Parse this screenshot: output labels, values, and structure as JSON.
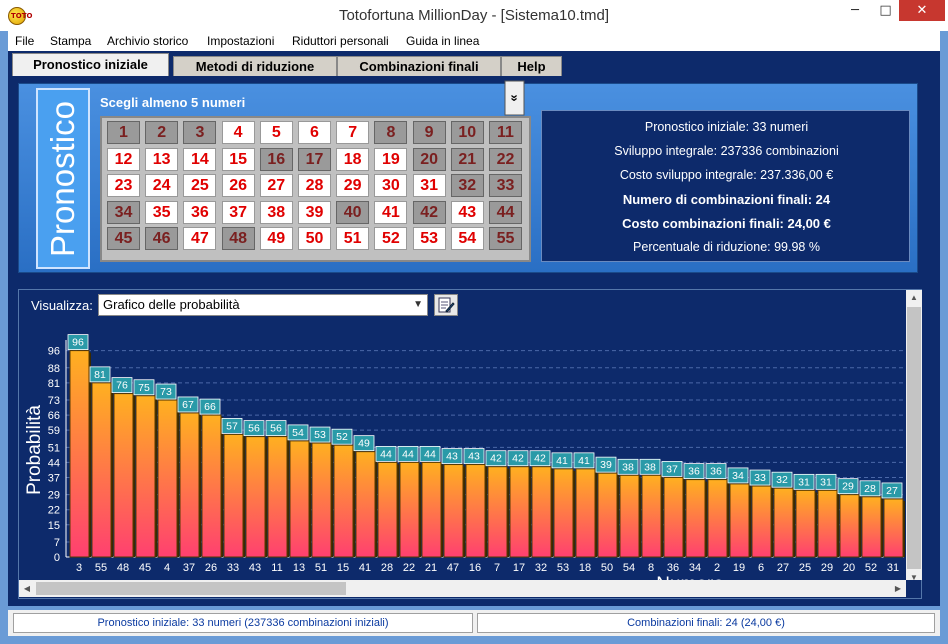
{
  "window": {
    "title": "Totofortuna MillionDay - [Sistema10.tmd]",
    "app_icon_text": "TOTO",
    "minimize_glyph": "─",
    "maximize_glyph": "□",
    "close_glyph": "✕"
  },
  "menu": [
    "File",
    "Stampa",
    "Archivio storico",
    "Impostazioni",
    "Riduttori personali",
    "Guida in linea"
  ],
  "tabs": [
    "Pronostico iniziale",
    "Metodi di riduzione",
    "Combinazioni finali",
    "Help"
  ],
  "active_tab": 0,
  "pronostico": {
    "side_label": "Pronostico",
    "instruction": "Scegli almeno 5 numeri",
    "expand_glyph": "»",
    "numbers": [
      1,
      2,
      3,
      4,
      5,
      6,
      7,
      8,
      9,
      10,
      11,
      12,
      13,
      14,
      15,
      16,
      17,
      18,
      19,
      20,
      21,
      22,
      23,
      24,
      25,
      26,
      27,
      28,
      29,
      30,
      31,
      32,
      33,
      34,
      35,
      36,
      37,
      38,
      39,
      40,
      41,
      42,
      43,
      44,
      45,
      46,
      47,
      48,
      49,
      50,
      51,
      52,
      53,
      54,
      55
    ],
    "selected": [
      4,
      5,
      6,
      7,
      12,
      13,
      14,
      15,
      18,
      19,
      23,
      24,
      25,
      26,
      27,
      28,
      29,
      30,
      31,
      35,
      36,
      37,
      38,
      39,
      41,
      43,
      47,
      49,
      50,
      51,
      52,
      53,
      54
    ]
  },
  "info": {
    "line1": "Pronostico iniziale: 33 numeri",
    "line2": "Sviluppo integrale: 237336 combinazioni",
    "line3": "Costo sviluppo integrale: 237.336,00 €",
    "line4": "Numero di combinazioni finali: 24",
    "line5": "Costo combinazioni finali: 24,00 €",
    "line6": "Percentuale di riduzione: 99.98 %"
  },
  "chart_controls": {
    "visualizza_label": "Visualizza:",
    "selected_option": "Grafico delle probabilità",
    "dropdown_glyph": "▼"
  },
  "chart_data": {
    "type": "bar",
    "ylabel": "Probabilità",
    "xlabel": "Numero",
    "ylim": [
      0,
      100
    ],
    "yticks": [
      0,
      7,
      15,
      22,
      29,
      37,
      44,
      51,
      59,
      66,
      73,
      81,
      88,
      96
    ],
    "categories": [
      "3",
      "55",
      "48",
      "45",
      "4",
      "37",
      "26",
      "33",
      "43",
      "11",
      "13",
      "51",
      "15",
      "41",
      "28",
      "22",
      "21",
      "47",
      "16",
      "7",
      "17",
      "32",
      "53",
      "18",
      "50",
      "54",
      "8",
      "36",
      "34",
      "2",
      "19",
      "6",
      "27",
      "25",
      "29",
      "20",
      "52",
      "31"
    ],
    "values": [
      96,
      81,
      76,
      75,
      73,
      67,
      66,
      57,
      56,
      56,
      54,
      53,
      52,
      49,
      44,
      44,
      44,
      43,
      43,
      42,
      42,
      42,
      41,
      41,
      39,
      38,
      38,
      37,
      36,
      36,
      34,
      33,
      32,
      31,
      31,
      29,
      28,
      27
    ],
    "colors": {
      "bar_top": "#ffb020",
      "bar_bottom": "#ff4070",
      "label_bg": "#2a9aa8",
      "bar_edge": "#5a3a00"
    }
  },
  "scrollbars": {
    "up": "▲",
    "down": "▼",
    "left": "◀",
    "right": "▶"
  },
  "status": {
    "left": "Pronostico iniziale: 33 numeri (237336 combinazioni iniziali)",
    "right": "Combinazioni finali: 24 (24,00 €)"
  }
}
